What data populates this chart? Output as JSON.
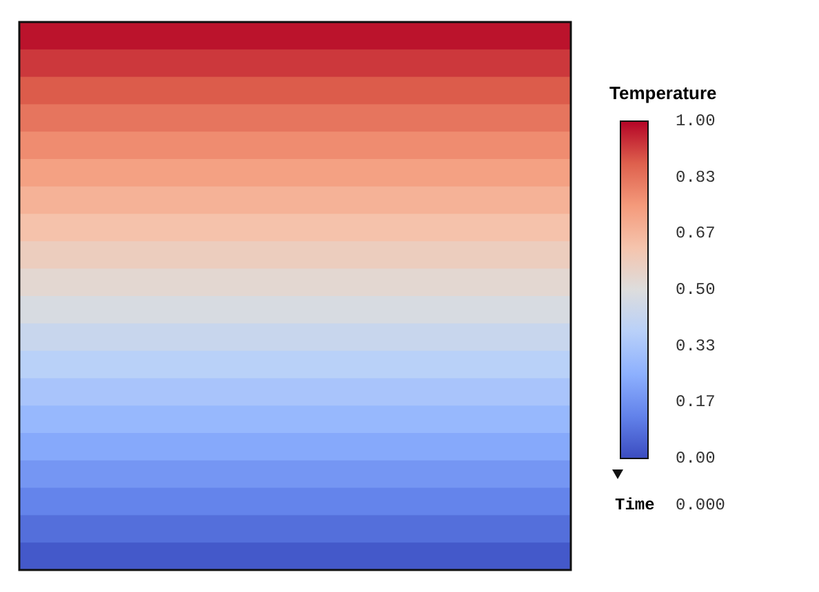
{
  "chart_data": {
    "type": "heatmap",
    "categories": [
      null
    ],
    "y_categories": [
      null,
      null,
      null,
      null,
      null,
      null,
      null,
      null,
      null,
      null,
      null,
      null,
      null,
      null,
      null,
      null,
      null,
      null,
      null,
      null
    ],
    "cells": [
      [
        0.98
      ],
      [
        0.93
      ],
      [
        0.88
      ],
      [
        0.83
      ],
      [
        0.78
      ],
      [
        0.73
      ],
      [
        0.68
      ],
      [
        0.63
      ],
      [
        0.58
      ],
      [
        0.53
      ],
      [
        0.48
      ],
      [
        0.43
      ],
      [
        0.38
      ],
      [
        0.33
      ],
      [
        0.28
      ],
      [
        0.23
      ],
      [
        0.18
      ],
      [
        0.13
      ],
      [
        0.08
      ],
      [
        0.03
      ]
    ],
    "clabel": "Temperature",
    "clim": [
      0,
      1
    ],
    "cticks": [
      {
        "value": 0,
        "label": "0.00"
      },
      {
        "value": 0.1667,
        "label": "0.17"
      },
      {
        "value": 0.3333,
        "label": "0.33"
      },
      {
        "value": 0.5,
        "label": "0.50"
      },
      {
        "value": 0.6667,
        "label": "0.67"
      },
      {
        "value": 0.8333,
        "label": "0.83"
      },
      {
        "value": 1,
        "label": "1.00"
      }
    ],
    "annotations": [
      "Time 0.000"
    ]
  }
}
